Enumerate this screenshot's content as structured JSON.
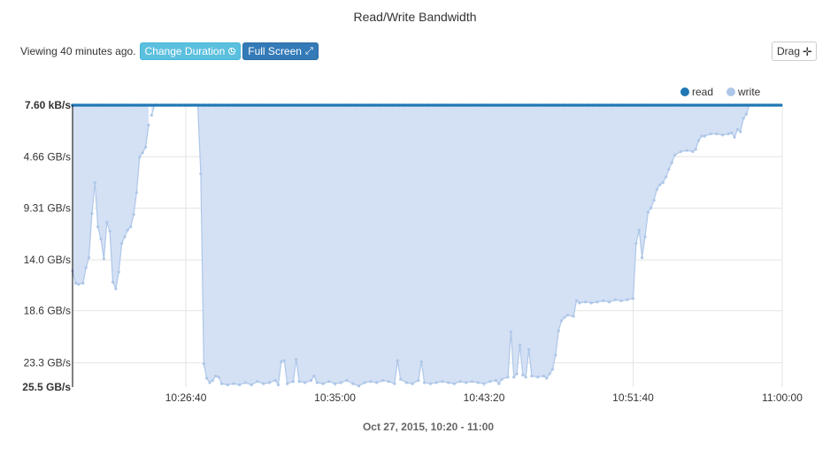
{
  "title": "Read/Write Bandwidth",
  "toolbar": {
    "viewing_text": "Viewing 40 minutes ago.",
    "change_duration_label": "Change Duration",
    "full_screen_label": "Full Screen",
    "drag_label": "Drag"
  },
  "icons": {
    "change_duration": "clock-icon",
    "full_screen": "expand-icon",
    "drag": "move-arrows-icon"
  },
  "colors": {
    "read": "#1f77b4",
    "write": "#aec7e8",
    "write_fill": "#d4e0f4",
    "change_duration_button": "#5bc0de",
    "full_screen_button": "#337ab7"
  },
  "chart_data": {
    "type": "area",
    "title": "Read/Write Bandwidth",
    "xlabel": "Oct 27, 2015, 10:20 - 11:00",
    "ylabel": "",
    "x_range": [
      "10:20:20",
      "11:00:00"
    ],
    "y_axis_inverted": true,
    "y_axis_max_label": "25.5 GB/s",
    "y_axis_min_label": "7.60 kB/s",
    "y_ticks": [
      "7.60 kB/s",
      "4.66 GB/s",
      "9.31 GB/s",
      "14.0 GB/s",
      "18.6 GB/s",
      "23.3 GB/s",
      "25.5 GB/s"
    ],
    "x_ticks": [
      "10:26:40",
      "10:35:00",
      "10:43:20",
      "10:51:40",
      "11:00:00"
    ],
    "grid": true,
    "legend_position": "top-right",
    "series": [
      {
        "name": "read",
        "unit": "GB/s",
        "points": [
          [
            "10:20:20",
            0
          ],
          [
            "11:00:00",
            0
          ]
        ]
      },
      {
        "name": "write",
        "unit": "GB/s",
        "gap": [
          "10:24:40",
          "10:27:20"
        ],
        "points": [
          [
            "10:20:20",
            15.0
          ],
          [
            "10:20:30",
            16.1
          ],
          [
            "10:20:40",
            16.2
          ],
          [
            "10:20:55",
            16.1
          ],
          [
            "10:21:05",
            14.7
          ],
          [
            "10:21:15",
            13.8
          ],
          [
            "10:21:25",
            9.8
          ],
          [
            "10:21:35",
            7.0
          ],
          [
            "10:21:45",
            11.0
          ],
          [
            "10:21:55",
            12.1
          ],
          [
            "10:22:05",
            13.9
          ],
          [
            "10:22:15",
            10.6
          ],
          [
            "10:22:25",
            11.4
          ],
          [
            "10:22:35",
            16.0
          ],
          [
            "10:22:45",
            16.6
          ],
          [
            "10:22:55",
            15.1
          ],
          [
            "10:23:05",
            12.5
          ],
          [
            "10:23:15",
            11.9
          ],
          [
            "10:23:25",
            11.3
          ],
          [
            "10:23:35",
            11.0
          ],
          [
            "10:23:45",
            9.9
          ],
          [
            "10:23:55",
            7.9
          ],
          [
            "10:24:05",
            4.7
          ],
          [
            "10:24:15",
            4.3
          ],
          [
            "10:24:25",
            3.8
          ],
          [
            "10:24:35",
            1.8
          ],
          [
            "10:24:45",
            0.9
          ],
          [
            "10:24:55",
            0
          ],
          [
            "10:27:20",
            0
          ],
          [
            "10:27:30",
            6.2
          ],
          [
            "10:27:40",
            23.4
          ],
          [
            "10:27:50",
            24.7
          ],
          [
            "10:28:00",
            25.1
          ],
          [
            "10:28:10",
            24.9
          ],
          [
            "10:28:20",
            24.5
          ],
          [
            "10:28:30",
            24.6
          ],
          [
            "10:28:40",
            25.2
          ],
          [
            "10:29:00",
            25.3
          ],
          [
            "10:29:20",
            25.2
          ],
          [
            "10:29:40",
            25.3
          ],
          [
            "10:30:00",
            25.1
          ],
          [
            "10:30:20",
            25.3
          ],
          [
            "10:30:40",
            25.0
          ],
          [
            "10:31:00",
            25.2
          ],
          [
            "10:31:20",
            25.1
          ],
          [
            "10:31:40",
            24.9
          ],
          [
            "10:31:50",
            25.3
          ],
          [
            "10:32:00",
            23.2
          ],
          [
            "10:32:10",
            23.1
          ],
          [
            "10:32:20",
            25.2
          ],
          [
            "10:32:40",
            25.0
          ],
          [
            "10:32:50",
            23.0
          ],
          [
            "10:33:00",
            25.0
          ],
          [
            "10:33:20",
            25.1
          ],
          [
            "10:33:40",
            24.9
          ],
          [
            "10:33:50",
            24.5
          ],
          [
            "10:34:00",
            25.1
          ],
          [
            "10:34:20",
            25.2
          ],
          [
            "10:34:40",
            25.0
          ],
          [
            "10:35:00",
            25.2
          ],
          [
            "10:35:20",
            25.1
          ],
          [
            "10:35:40",
            24.9
          ],
          [
            "10:36:00",
            25.2
          ],
          [
            "10:36:20",
            25.4
          ],
          [
            "10:36:40",
            25.1
          ],
          [
            "10:37:00",
            25.0
          ],
          [
            "10:37:20",
            25.1
          ],
          [
            "10:37:40",
            24.9
          ],
          [
            "10:38:00",
            25.0
          ],
          [
            "10:38:20",
            25.2
          ],
          [
            "10:38:30",
            23.1
          ],
          [
            "10:38:40",
            24.8
          ],
          [
            "10:39:00",
            25.1
          ],
          [
            "10:39:20",
            25.2
          ],
          [
            "10:39:40",
            24.9
          ],
          [
            "10:39:50",
            23.2
          ],
          [
            "10:40:00",
            25.1
          ],
          [
            "10:40:20",
            25.2
          ],
          [
            "10:40:40",
            25.1
          ],
          [
            "10:41:00",
            25.0
          ],
          [
            "10:41:20",
            25.1
          ],
          [
            "10:41:40",
            25.2
          ],
          [
            "10:42:00",
            25.0
          ],
          [
            "10:42:20",
            25.1
          ],
          [
            "10:42:40",
            25.0
          ],
          [
            "10:43:00",
            25.1
          ],
          [
            "10:43:20",
            25.2
          ],
          [
            "10:43:40",
            25.0
          ],
          [
            "10:44:00",
            24.9
          ],
          [
            "10:44:10",
            25.2
          ],
          [
            "10:44:20",
            24.8
          ],
          [
            "10:44:40",
            24.6
          ],
          [
            "10:44:50",
            20.5
          ],
          [
            "10:45:00",
            24.6
          ],
          [
            "10:45:10",
            24.3
          ],
          [
            "10:45:20",
            21.7
          ],
          [
            "10:45:30",
            24.4
          ],
          [
            "10:45:40",
            24.6
          ],
          [
            "10:45:50",
            22.1
          ],
          [
            "10:46:00",
            24.5
          ],
          [
            "10:46:20",
            24.6
          ],
          [
            "10:46:40",
            24.5
          ],
          [
            "10:46:50",
            24.7
          ],
          [
            "10:47:00",
            24.3
          ],
          [
            "10:47:10",
            23.9
          ],
          [
            "10:47:20",
            22.6
          ],
          [
            "10:47:30",
            20.4
          ],
          [
            "10:47:40",
            19.5
          ],
          [
            "10:47:50",
            19.2
          ],
          [
            "10:48:00",
            19.0
          ],
          [
            "10:48:20",
            19.1
          ],
          [
            "10:48:30",
            17.7
          ],
          [
            "10:48:40",
            17.9
          ],
          [
            "10:49:00",
            17.8
          ],
          [
            "10:49:20",
            17.9
          ],
          [
            "10:49:40",
            17.8
          ],
          [
            "10:50:00",
            17.7
          ],
          [
            "10:50:20",
            17.8
          ],
          [
            "10:50:40",
            17.6
          ],
          [
            "10:51:00",
            17.7
          ],
          [
            "10:51:20",
            17.6
          ],
          [
            "10:51:40",
            17.5
          ],
          [
            "10:51:50",
            12.5
          ],
          [
            "10:52:00",
            11.3
          ],
          [
            "10:52:10",
            13.8
          ],
          [
            "10:52:20",
            11.9
          ],
          [
            "10:52:30",
            9.7
          ],
          [
            "10:52:40",
            9.3
          ],
          [
            "10:52:50",
            8.6
          ],
          [
            "10:53:00",
            7.6
          ],
          [
            "10:53:10",
            7.2
          ],
          [
            "10:53:20",
            7.0
          ],
          [
            "10:53:30",
            6.5
          ],
          [
            "10:53:40",
            5.8
          ],
          [
            "10:53:50",
            5.2
          ],
          [
            "10:54:00",
            4.5
          ],
          [
            "10:54:20",
            4.2
          ],
          [
            "10:54:40",
            4.1
          ],
          [
            "10:55:00",
            4.2
          ],
          [
            "10:55:10",
            4.0
          ],
          [
            "10:55:20",
            3.2
          ],
          [
            "10:55:30",
            2.8
          ],
          [
            "10:55:40",
            2.8
          ],
          [
            "10:56:00",
            2.6
          ],
          [
            "10:56:20",
            2.6
          ],
          [
            "10:56:40",
            2.7
          ],
          [
            "10:57:00",
            2.6
          ],
          [
            "10:57:10",
            2.5
          ],
          [
            "10:57:20",
            2.9
          ],
          [
            "10:57:30",
            2.2
          ],
          [
            "10:57:40",
            2.4
          ],
          [
            "10:57:50",
            1.2
          ],
          [
            "10:58:00",
            0.8
          ],
          [
            "10:58:10",
            0
          ]
        ]
      }
    ]
  }
}
